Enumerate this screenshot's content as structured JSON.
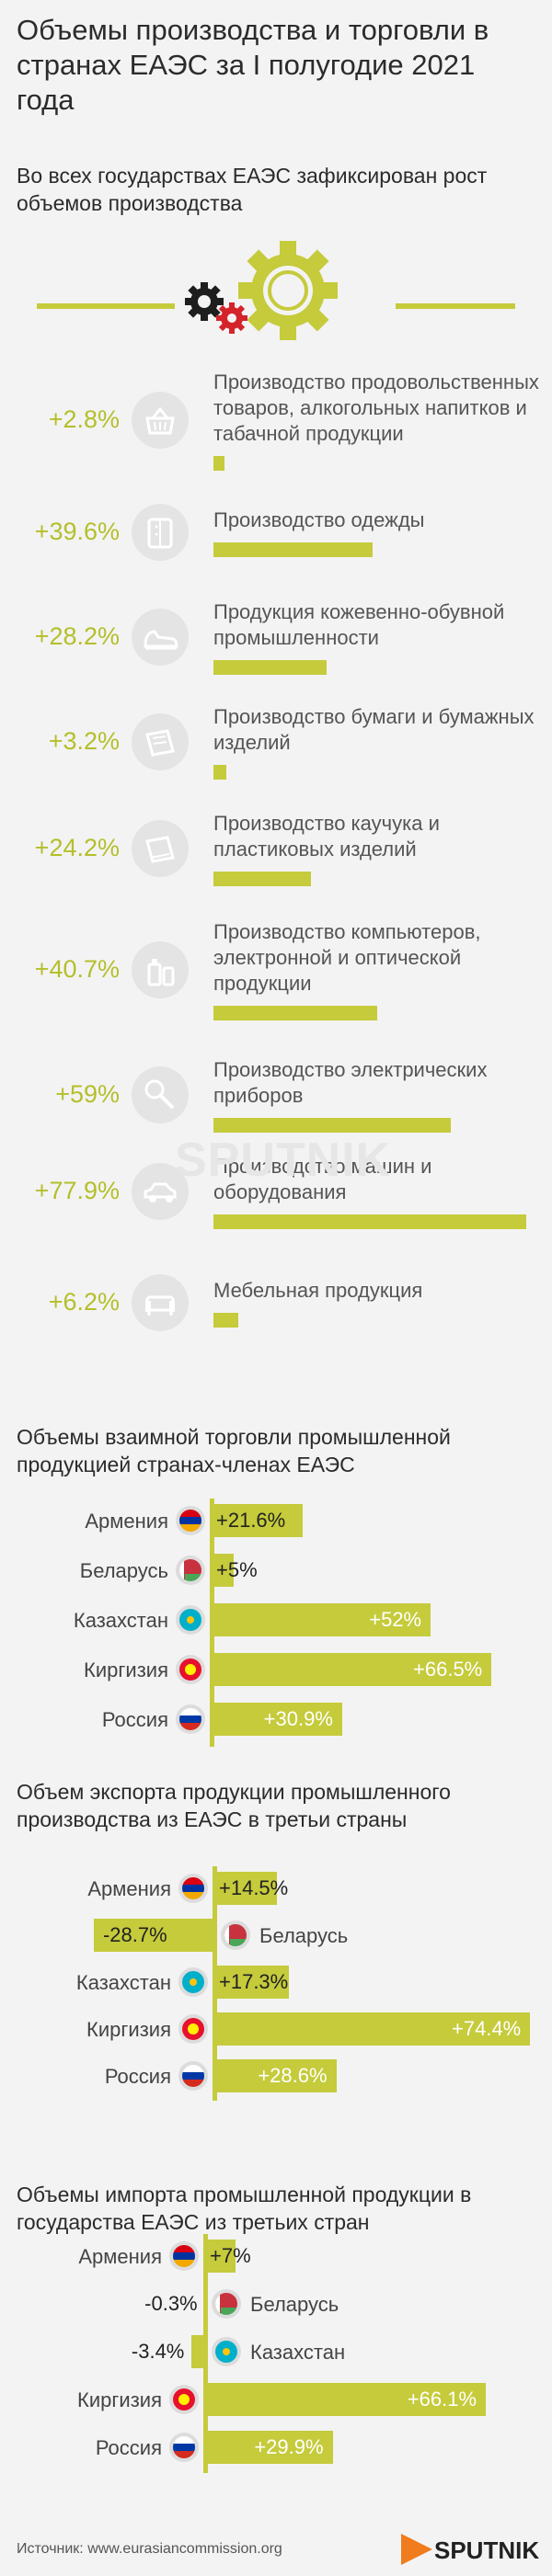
{
  "title": "Объемы производства и торговли в странах ЕАЭС за I полугодие 2021 года",
  "production": {
    "heading": "Во всех государствах ЕАЭС зафиксирован рост объемов производства",
    "items": [
      {
        "pct": "+2.8%",
        "value": 2.8,
        "icon": "food-basket-icon",
        "label": "Производство продовольственных товаров, алкогольных напитков и табачной продукции"
      },
      {
        "pct": "+39.6%",
        "value": 39.6,
        "icon": "clothing-icon",
        "label": "Производство одежды"
      },
      {
        "pct": "+28.2%",
        "value": 28.2,
        "icon": "shoe-icon",
        "label": "Продукция кожевенно-обувной промышленности"
      },
      {
        "pct": "+3.2%",
        "value": 3.2,
        "icon": "paper-icon",
        "label": "Производство бумаги и бумажных изделий"
      },
      {
        "pct": "+24.2%",
        "value": 24.2,
        "icon": "plastic-icon",
        "label": "Производство каучука и пластиковых изделий"
      },
      {
        "pct": "+40.7%",
        "value": 40.7,
        "icon": "electronics-icon",
        "label": "Производство компьютеров, электронной и оптической продукции"
      },
      {
        "pct": "+59%",
        "value": 59,
        "icon": "mixer-icon",
        "label": "Производство электрических приборов"
      },
      {
        "pct": "+77.9%",
        "value": 77.9,
        "icon": "car-icon",
        "label": "Производство машин и оборудования"
      },
      {
        "pct": "+6.2%",
        "value": 6.2,
        "icon": "sofa-icon",
        "label": "Мебельная продукция"
      }
    ]
  },
  "watermark": "SPUTNIK",
  "chart_data": [
    {
      "type": "bar",
      "title": "Объемы взаимной торговли промышленной продукцией странах-членах ЕАЭС",
      "categories": [
        "Армения",
        "Беларусь",
        "Казахстан",
        "Киргизия",
        "Россия"
      ],
      "values": [
        21.6,
        5,
        52,
        66.5,
        30.9
      ],
      "labels": [
        "+21.6%",
        "+5%",
        "+52%",
        "+66.5%",
        "+30.9%"
      ]
    },
    {
      "type": "bar",
      "title": "Объем экспорта продукции промышленного производства из ЕАЭС в третьи страны",
      "categories": [
        "Армения",
        "Беларусь",
        "Казахстан",
        "Киргизия",
        "Россия"
      ],
      "values": [
        14.5,
        -28.7,
        17.3,
        74.4,
        28.6
      ],
      "labels": [
        "+14.5%",
        "-28.7%",
        "+17.3%",
        "+74.4%",
        "+28.6%"
      ]
    },
    {
      "type": "bar",
      "title": "Объемы импорта промышленной продукции в государства ЕАЭС из третьих стран",
      "categories": [
        "Армения",
        "Беларусь",
        "Казахстан",
        "Киргизия",
        "Россия"
      ],
      "values": [
        7,
        -0.3,
        -3.4,
        66.1,
        29.9
      ],
      "labels": [
        "+7%",
        "-0.3%",
        "-3.4%",
        "+66.1%",
        "+29.9%"
      ]
    }
  ],
  "colors": {
    "accent": "#c5cb3b",
    "pct_text": "#b4bf2a",
    "logo": "#f07c1e"
  },
  "source": "Источник: www.eurasiancommission.org",
  "logo_text": "SPUTNIK"
}
